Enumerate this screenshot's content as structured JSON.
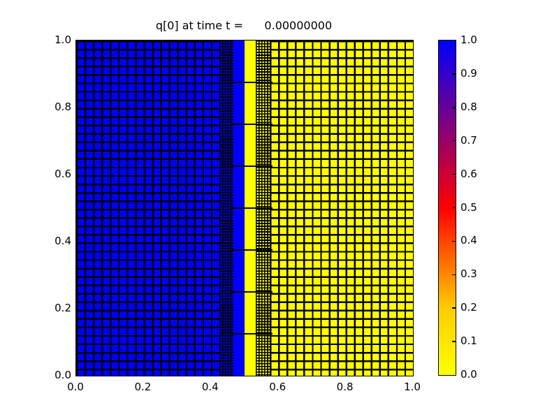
{
  "chart_data": {
    "type": "heatmap",
    "title": "q[0] at time t =      0.00000000",
    "xlabel": "",
    "ylabel": "",
    "xlim": [
      0.0,
      1.0
    ],
    "ylim": [
      0.0,
      1.0
    ],
    "x_ticks": [
      "0.0",
      "0.2",
      "0.4",
      "0.6",
      "0.8",
      "1.0"
    ],
    "y_ticks": [
      "0.0",
      "0.2",
      "0.4",
      "0.6",
      "0.8",
      "1.0"
    ],
    "field_values": [
      {
        "x_range": [
          0.0,
          0.5
        ],
        "q_value": 1.0,
        "color": "#0000fa"
      },
      {
        "x_range": [
          0.5,
          1.0
        ],
        "q_value": 0.0,
        "color": "#ffff00"
      }
    ],
    "mesh": {
      "line_color": "#000000",
      "coarse_spacing": 0.025,
      "fine_spacing": 0.0083333,
      "regions": [
        {
          "x0": 0.0,
          "x1": 0.425,
          "fill": "#0000fa",
          "grid": "coarse"
        },
        {
          "x0": 0.425,
          "x1": 0.4667,
          "fill": "#0000fa",
          "grid": "fine"
        },
        {
          "x0": 0.4667,
          "x1": 0.5,
          "fill": "#0000fa",
          "grid": "none"
        },
        {
          "x0": 0.5,
          "x1": 0.5333,
          "fill": "#ffff00",
          "grid": "none"
        },
        {
          "x0": 0.5333,
          "x1": 0.575,
          "fill": "#ffff00",
          "grid": "fine"
        },
        {
          "x0": 0.575,
          "x1": 1.0,
          "fill": "#ffff00",
          "grid": "coarse"
        }
      ],
      "patch_boundaries_y": [
        0.125,
        0.25,
        0.375,
        0.5,
        0.625,
        0.75,
        0.875
      ],
      "patch_boundary_x_range": [
        0.4583,
        0.5833
      ]
    },
    "colorbar": {
      "ticks": [
        "1.0",
        "0.9",
        "0.8",
        "0.7",
        "0.6",
        "0.5",
        "0.4",
        "0.3",
        "0.2",
        "0.1",
        "0.0"
      ],
      "gradient_stops": [
        {
          "v": 0.0,
          "color": "#ffff00"
        },
        {
          "v": 0.2,
          "color": "#ffcc00"
        },
        {
          "v": 0.5,
          "color": "#ff0000"
        },
        {
          "v": 0.75,
          "color": "#800080"
        },
        {
          "v": 1.0,
          "color": "#0000ff"
        }
      ]
    }
  }
}
